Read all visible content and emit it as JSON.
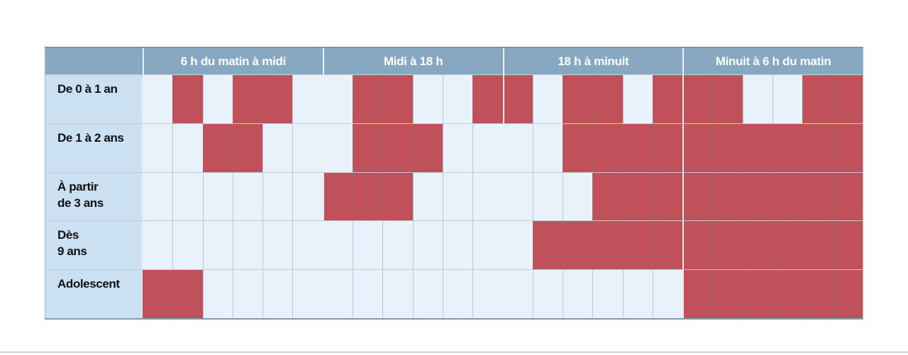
{
  "chart_data": {
    "type": "heatmap",
    "title": "",
    "periods": [
      "6 h du matin à midi",
      "Midi à 18 h",
      "18 h à minuit",
      "Minuit à 6 h du matin"
    ],
    "columns_per_period": 6,
    "total_columns": 24,
    "rows": [
      {
        "label": "De 0 à 1 an",
        "label_lines": [
          "De 0 à 1 an"
        ],
        "cells": [
          0,
          1,
          0,
          1,
          1,
          0,
          0,
          1,
          1,
          0,
          0,
          1,
          1,
          0,
          1,
          1,
          0,
          1,
          1,
          1,
          0,
          0,
          1,
          1
        ]
      },
      {
        "label": "De 1 à 2 ans",
        "label_lines": [
          "De 1 à 2 ans"
        ],
        "cells": [
          0,
          0,
          1,
          1,
          0,
          0,
          0,
          1,
          1,
          1,
          0,
          0,
          0,
          0,
          1,
          1,
          1,
          1,
          1,
          1,
          1,
          1,
          1,
          1
        ]
      },
      {
        "label": "À partir de 3 ans",
        "label_lines": [
          "À partir",
          "de 3 ans"
        ],
        "cells": [
          0,
          0,
          0,
          0,
          0,
          0,
          1,
          1,
          1,
          0,
          0,
          0,
          0,
          0,
          0,
          1,
          1,
          1,
          1,
          1,
          1,
          1,
          1,
          1
        ]
      },
      {
        "label": "Dès 9 ans",
        "label_lines": [
          "Dès",
          "9 ans"
        ],
        "cells": [
          0,
          0,
          0,
          0,
          0,
          0,
          0,
          0,
          0,
          0,
          0,
          0,
          0,
          1,
          1,
          1,
          1,
          1,
          1,
          1,
          1,
          1,
          1,
          1
        ]
      },
      {
        "label": "Adolescent",
        "label_lines": [
          "Adolescent"
        ],
        "cells": [
          1,
          1,
          0,
          0,
          0,
          0,
          0,
          0,
          0,
          0,
          0,
          0,
          0,
          0,
          0,
          0,
          0,
          0,
          1,
          1,
          1,
          1,
          1,
          1
        ]
      }
    ],
    "colors": {
      "filled": "#c0505a",
      "empty": "#e9f2fa",
      "header_bg": "#88a7c1",
      "header_text": "#ffffff",
      "label_bg": "#cbe0f1",
      "label_text": "#111111"
    },
    "layout": {
      "legend": "none",
      "grid": "on"
    }
  }
}
